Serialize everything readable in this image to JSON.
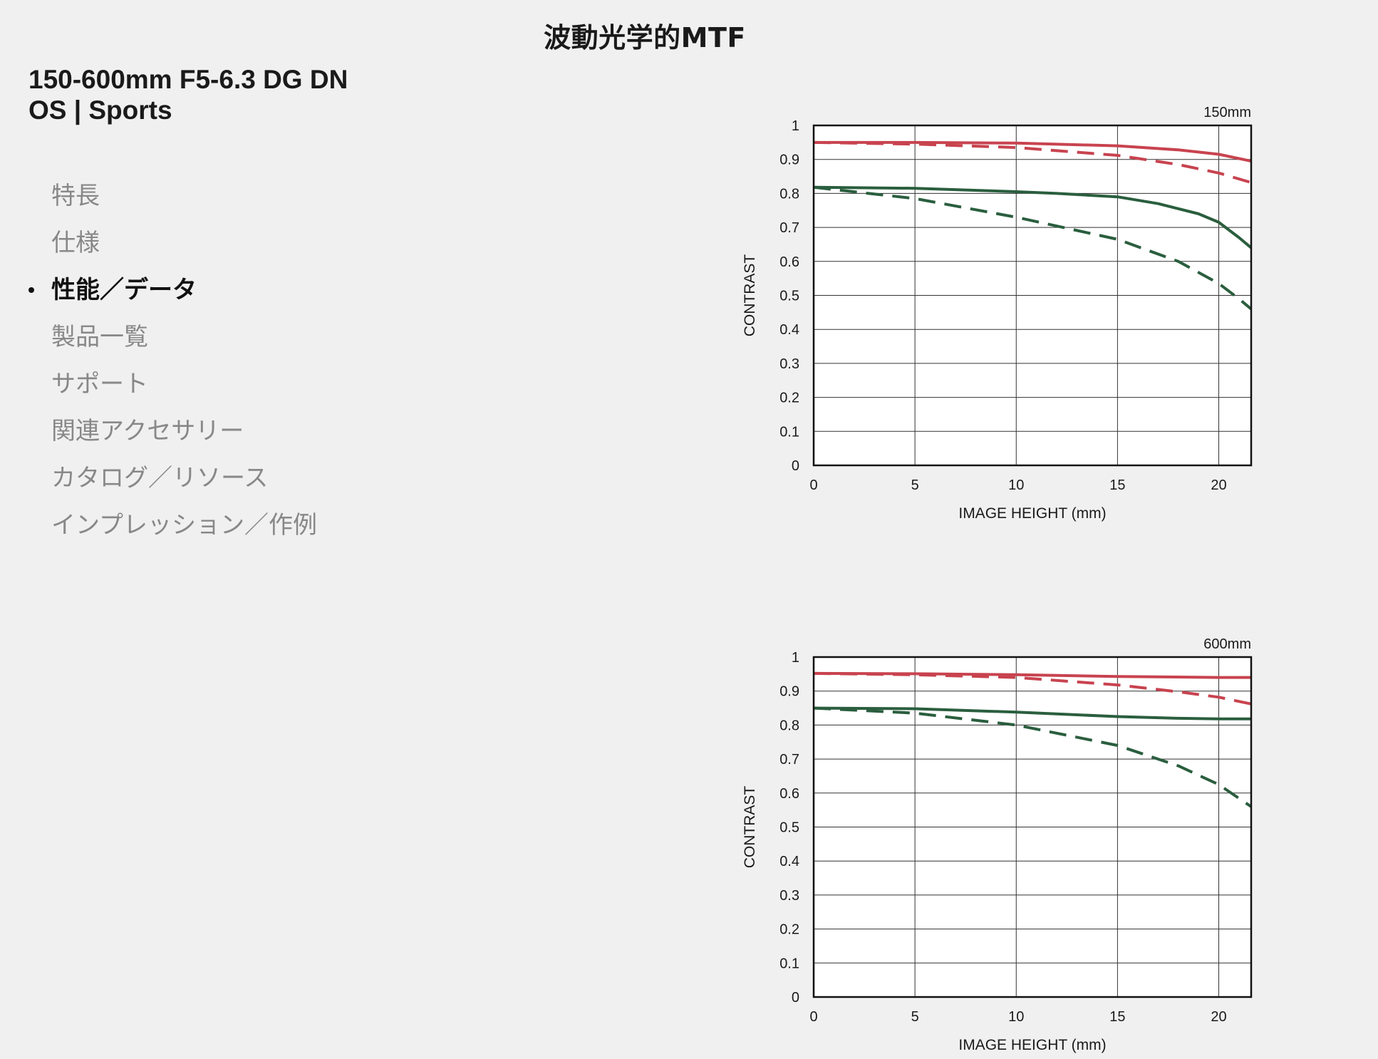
{
  "page": {
    "title": "波動光学的MTF"
  },
  "product": {
    "name_line1": "150-600mm F5-6.3 DG DN",
    "name_line2": "OS | Sports"
  },
  "nav": {
    "items": [
      {
        "label": "特長",
        "active": false
      },
      {
        "label": "仕様",
        "active": false
      },
      {
        "label": "性能／データ",
        "active": true
      },
      {
        "label": "製品一覧",
        "active": false
      },
      {
        "label": "サポート",
        "active": false
      },
      {
        "label": "関連アクセサリー",
        "active": false
      },
      {
        "label": "カタログ／リソース",
        "active": false
      },
      {
        "label": "インプレッション／作例",
        "active": false
      }
    ]
  },
  "colors": {
    "background": "#f0f0f0",
    "red_series": "#c8434f",
    "green_series": "#2a5e3e",
    "grid": "#333333",
    "plot_background": "#ffffff"
  },
  "chart_data": [
    {
      "type": "line",
      "title": "150mm",
      "xlabel": "IMAGE HEIGHT (mm)",
      "ylabel": "CONTRAST",
      "xlim": [
        0,
        21.6
      ],
      "ylim": [
        0,
        1
      ],
      "xticks": [
        0,
        5,
        10,
        15,
        20
      ],
      "yticks": [
        0,
        0.1,
        0.2,
        0.3,
        0.4,
        0.5,
        0.6,
        0.7,
        0.8,
        0.9,
        1
      ],
      "grid": true,
      "legend": "none",
      "series": [
        {
          "color": "#c8434f",
          "dash": false,
          "x": [
            0,
            5,
            10,
            15,
            18,
            20,
            21.6
          ],
          "y": [
            0.95,
            0.95,
            0.948,
            0.94,
            0.928,
            0.915,
            0.895
          ]
        },
        {
          "color": "#c8434f",
          "dash": true,
          "x": [
            0,
            5,
            10,
            15,
            18,
            20,
            21.6
          ],
          "y": [
            0.95,
            0.945,
            0.935,
            0.912,
            0.885,
            0.86,
            0.832
          ]
        },
        {
          "color": "#2a5e3e",
          "dash": false,
          "x": [
            0,
            5,
            10,
            12,
            15,
            17,
            19,
            20,
            21,
            21.6
          ],
          "y": [
            0.818,
            0.815,
            0.805,
            0.8,
            0.79,
            0.77,
            0.74,
            0.715,
            0.67,
            0.64
          ]
        },
        {
          "color": "#2a5e3e",
          "dash": true,
          "x": [
            0,
            5,
            10,
            15,
            18,
            20,
            21,
            21.6
          ],
          "y": [
            0.818,
            0.785,
            0.73,
            0.665,
            0.6,
            0.535,
            0.49,
            0.46
          ]
        }
      ]
    },
    {
      "type": "line",
      "title": "600mm",
      "xlabel": "IMAGE HEIGHT (mm)",
      "ylabel": "CONTRAST",
      "xlim": [
        0,
        21.6
      ],
      "ylim": [
        0,
        1
      ],
      "xticks": [
        0,
        5,
        10,
        15,
        20
      ],
      "yticks": [
        0,
        0.1,
        0.2,
        0.3,
        0.4,
        0.5,
        0.6,
        0.7,
        0.8,
        0.9,
        1
      ],
      "grid": true,
      "legend": "none",
      "series": [
        {
          "color": "#c8434f",
          "dash": false,
          "x": [
            0,
            5,
            10,
            15,
            20,
            21.6
          ],
          "y": [
            0.952,
            0.951,
            0.948,
            0.943,
            0.94,
            0.94
          ]
        },
        {
          "color": "#c8434f",
          "dash": true,
          "x": [
            0,
            5,
            10,
            15,
            18,
            20,
            21.6
          ],
          "y": [
            0.952,
            0.948,
            0.94,
            0.918,
            0.898,
            0.882,
            0.862
          ]
        },
        {
          "color": "#2a5e3e",
          "dash": false,
          "x": [
            0,
            5,
            10,
            15,
            18,
            20,
            21.6
          ],
          "y": [
            0.85,
            0.848,
            0.838,
            0.825,
            0.82,
            0.818,
            0.818
          ]
        },
        {
          "color": "#2a5e3e",
          "dash": true,
          "x": [
            0,
            5,
            10,
            15,
            18,
            20,
            21.6
          ],
          "y": [
            0.85,
            0.835,
            0.8,
            0.74,
            0.68,
            0.625,
            0.56
          ]
        }
      ]
    }
  ]
}
